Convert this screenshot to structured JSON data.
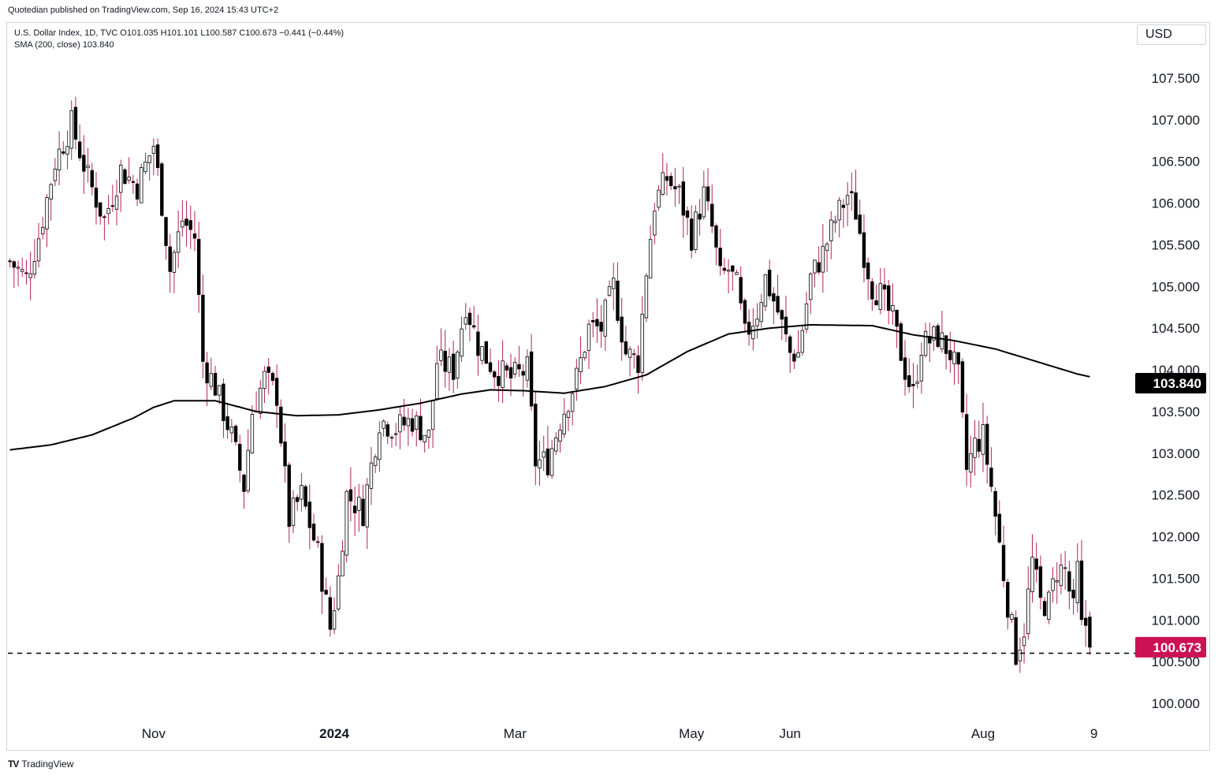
{
  "publisher_line": "Quotedian published on TradingView.com, Sep 16, 2024 15:43 UTC+2",
  "legend": {
    "line1": "U.S. Dollar Index, 1D, TVC  O101.035  H101.101  L100.587  C100.673  −0.441  (−0.44%)",
    "line2": "SMA (200, close)  103.840"
  },
  "currency_button": "USD",
  "footer": {
    "brand": "TradingView",
    "logo": "TV"
  },
  "colors": {
    "up": "#000000",
    "down": "#000000",
    "wick": "#b2245a",
    "sma": "#000000",
    "price_label_bg": "#cc1154",
    "sma_label_bg": "#000000"
  },
  "chart_data": {
    "type": "candlestick",
    "y_range": [
      99.6,
      108.0
    ],
    "x_tick_labels": [
      {
        "i": 35,
        "label": "Nov"
      },
      {
        "i": 79,
        "label": "2024"
      },
      {
        "i": 123,
        "label": "Mar"
      },
      {
        "i": 166,
        "label": "May"
      },
      {
        "i": 190,
        "label": "Jun"
      },
      {
        "i": 237,
        "label": "Aug"
      },
      {
        "i": 264,
        "label": "9"
      }
    ],
    "y_tick_labels": [
      "100.000",
      "100.500",
      "101.000",
      "101.500",
      "102.000",
      "102.500",
      "103.000",
      "103.500",
      "104.000",
      "104.500",
      "105.000",
      "105.500",
      "106.000",
      "106.500",
      "107.000",
      "107.500"
    ],
    "last_price": 100.673,
    "last_price_label": "100.673",
    "sma_value": 103.84,
    "sma_label": "103.840",
    "sma_anchors": [
      [
        0,
        103.04
      ],
      [
        10,
        103.1
      ],
      [
        20,
        103.22
      ],
      [
        30,
        103.42
      ],
      [
        35,
        103.55
      ],
      [
        40,
        103.63
      ],
      [
        50,
        103.63
      ],
      [
        60,
        103.5
      ],
      [
        70,
        103.45
      ],
      [
        80,
        103.46
      ],
      [
        90,
        103.52
      ],
      [
        100,
        103.6
      ],
      [
        110,
        103.71
      ],
      [
        117,
        103.76
      ],
      [
        125,
        103.75
      ],
      [
        135,
        103.72
      ],
      [
        145,
        103.8
      ],
      [
        155,
        103.94
      ],
      [
        165,
        104.22
      ],
      [
        175,
        104.43
      ],
      [
        185,
        104.5
      ],
      [
        195,
        104.54
      ],
      [
        210,
        104.53
      ],
      [
        220,
        104.42
      ],
      [
        230,
        104.35
      ],
      [
        240,
        104.25
      ],
      [
        250,
        104.1
      ],
      [
        260,
        103.95
      ],
      [
        270,
        103.84
      ]
    ],
    "close_anchors": [
      [
        0,
        105.3
      ],
      [
        4,
        105.1
      ],
      [
        7,
        105.6
      ],
      [
        11,
        106.5
      ],
      [
        15,
        106.95
      ],
      [
        19,
        106.3
      ],
      [
        23,
        105.8
      ],
      [
        27,
        106.4
      ],
      [
        31,
        106.2
      ],
      [
        35,
        106.7
      ],
      [
        37,
        106.0
      ],
      [
        39,
        105.2
      ],
      [
        42,
        105.8
      ],
      [
        45,
        105.6
      ],
      [
        47,
        104.1
      ],
      [
        50,
        103.8
      ],
      [
        54,
        103.2
      ],
      [
        57,
        102.6
      ],
      [
        59,
        103.5
      ],
      [
        62,
        103.9
      ],
      [
        65,
        103.7
      ],
      [
        68,
        102.2
      ],
      [
        71,
        102.5
      ],
      [
        75,
        101.8
      ],
      [
        78,
        100.9
      ],
      [
        80,
        101.5
      ],
      [
        82,
        102.5
      ],
      [
        86,
        102.3
      ],
      [
        90,
        103.4
      ],
      [
        94,
        103.3
      ],
      [
        98,
        103.4
      ],
      [
        102,
        103.2
      ],
      [
        104,
        104.1
      ],
      [
        108,
        104.0
      ],
      [
        111,
        104.8
      ],
      [
        114,
        104.3
      ],
      [
        118,
        104.0
      ],
      [
        122,
        103.9
      ],
      [
        126,
        104.0
      ],
      [
        128,
        102.9
      ],
      [
        131,
        102.9
      ],
      [
        134,
        103.4
      ],
      [
        138,
        103.9
      ],
      [
        141,
        104.5
      ],
      [
        144,
        104.5
      ],
      [
        147,
        105.0
      ],
      [
        150,
        104.2
      ],
      [
        153,
        104.1
      ],
      [
        155,
        105.2
      ],
      [
        157,
        106.0
      ],
      [
        160,
        106.3
      ],
      [
        163,
        106.1
      ],
      [
        166,
        105.6
      ],
      [
        169,
        106.1
      ],
      [
        171,
        105.7
      ],
      [
        173,
        105.1
      ],
      [
        175,
        105.2
      ],
      [
        177,
        105.0
      ],
      [
        179,
        104.4
      ],
      [
        182,
        104.7
      ],
      [
        184,
        105.1
      ],
      [
        187,
        104.7
      ],
      [
        190,
        104.2
      ],
      [
        192,
        104.2
      ],
      [
        195,
        105.1
      ],
      [
        198,
        105.4
      ],
      [
        201,
        105.8
      ],
      [
        204,
        106.1
      ],
      [
        206,
        105.9
      ],
      [
        208,
        105.4
      ],
      [
        210,
        105.0
      ],
      [
        212,
        104.9
      ],
      [
        215,
        104.6
      ],
      [
        218,
        104.0
      ],
      [
        220,
        103.7
      ],
      [
        222,
        104.3
      ],
      [
        226,
        104.4
      ],
      [
        229,
        104.2
      ],
      [
        231,
        103.9
      ],
      [
        233,
        102.8
      ],
      [
        235,
        103.1
      ],
      [
        237,
        103.2
      ],
      [
        239,
        102.6
      ],
      [
        241,
        101.9
      ],
      [
        243,
        101.2
      ],
      [
        245,
        100.6
      ],
      [
        247,
        100.9
      ],
      [
        249,
        101.7
      ],
      [
        251,
        101.2
      ],
      [
        253,
        101.2
      ],
      [
        255,
        101.6
      ],
      [
        257,
        101.6
      ],
      [
        259,
        101.1
      ],
      [
        260,
        101.6
      ],
      [
        261,
        100.9
      ],
      [
        262,
        100.95
      ],
      [
        263,
        100.673
      ]
    ],
    "lows_support": 100.6
  }
}
